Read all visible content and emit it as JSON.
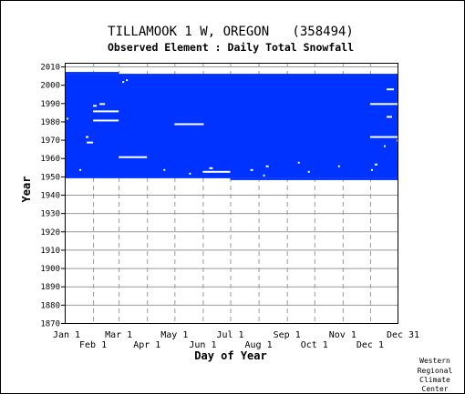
{
  "chart_data": {
    "type": "heatmap",
    "title": "TILLAMOOK 1 W, OREGON   (358494)",
    "subtitle": "Observed Element : Daily Total Snowfall",
    "xlabel": "Day of Year",
    "ylabel": "Year",
    "x_ticks_top_row": [
      "Jan 1",
      "Mar 1",
      "May 1",
      "Jul 1",
      "Sep 1",
      "Nov 1",
      "Dec 31"
    ],
    "x_ticks_bottom_row": [
      "Feb 1",
      "Apr 1",
      "Jun 1",
      "Aug 1",
      "Oct 1",
      "Dec 1"
    ],
    "x_tick_days_top": [
      1,
      60,
      121,
      182,
      244,
      305,
      365
    ],
    "x_tick_days_bottom": [
      32,
      91,
      152,
      213,
      274,
      335
    ],
    "y_ticks": [
      1870,
      1880,
      1890,
      1900,
      1910,
      1920,
      1930,
      1940,
      1950,
      1960,
      1970,
      1980,
      1990,
      2000,
      2010
    ],
    "xlim": [
      1,
      365
    ],
    "ylim": [
      1870,
      2012
    ],
    "data_color": "#0033ff",
    "grid_color": "#999999",
    "coverage": {
      "start_year": 1948,
      "end_year": 2005,
      "end_year_days_1_31": 2006,
      "start_day_1948": 182,
      "days_per_year": 365
    },
    "missing_segments": [
      {
        "year": 1960,
        "start_day": 60,
        "end_day": 90
      },
      {
        "year": 1978,
        "start_day": 121,
        "end_day": 152
      },
      {
        "year": 1952,
        "start_day": 152,
        "end_day": 181
      },
      {
        "year": 1971,
        "start_day": 335,
        "end_day": 365
      },
      {
        "year": 1989,
        "start_day": 335,
        "end_day": 365
      },
      {
        "year": 1980,
        "start_day": 32,
        "end_day": 59
      },
      {
        "year": 1985,
        "start_day": 32,
        "end_day": 59
      },
      {
        "year": 1968,
        "start_day": 25,
        "end_day": 31
      },
      {
        "year": 1971,
        "start_day": 24,
        "end_day": 26
      },
      {
        "year": 1988,
        "start_day": 32,
        "end_day": 35
      },
      {
        "year": 1989,
        "start_day": 39,
        "end_day": 44
      },
      {
        "year": 1997,
        "start_day": 353,
        "end_day": 360
      },
      {
        "year": 1982,
        "start_day": 353,
        "end_day": 358
      },
      {
        "year": 1954,
        "start_day": 159,
        "end_day": 162
      },
      {
        "year": 1953,
        "start_day": 17,
        "end_day": 18
      },
      {
        "year": 1955,
        "start_day": 221,
        "end_day": 223
      },
      {
        "year": 1956,
        "start_day": 340,
        "end_day": 342
      },
      {
        "year": 1950,
        "start_day": 218,
        "end_day": 219
      },
      {
        "year": 1953,
        "start_day": 204,
        "end_day": 206
      },
      {
        "year": 1952,
        "start_day": 267,
        "end_day": 268
      },
      {
        "year": 1953,
        "start_day": 109,
        "end_day": 110
      },
      {
        "year": 1951,
        "start_day": 137,
        "end_day": 138
      },
      {
        "year": 1955,
        "start_day": 300,
        "end_day": 301
      },
      {
        "year": 1957,
        "start_day": 256,
        "end_day": 257
      },
      {
        "year": 1966,
        "start_day": 350,
        "end_day": 351
      },
      {
        "year": 1969,
        "start_day": 364,
        "end_day": 365
      },
      {
        "year": 1953,
        "start_day": 336,
        "end_day": 337
      },
      {
        "year": 1981,
        "start_day": 3,
        "end_day": 4
      },
      {
        "year": 2002,
        "start_day": 68,
        "end_day": 69
      },
      {
        "year": 2001,
        "start_day": 64,
        "end_day": 65
      }
    ]
  },
  "credit": [
    "Western",
    "Regional",
    "Climate",
    "Center"
  ]
}
